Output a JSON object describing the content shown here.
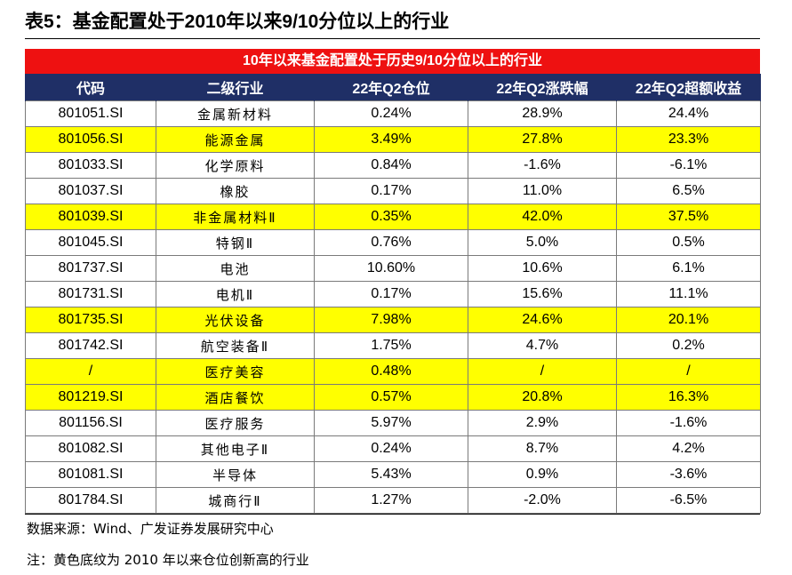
{
  "title": "表5：基金配置处于2010年以来9/10分位以上的行业",
  "banner": "10年以来基金配置处于历史9/10分位以上的行业",
  "table": {
    "columns": [
      "代码",
      "二级行业",
      "22年Q2仓位",
      "22年Q2涨跌幅",
      "22年Q2超额收益"
    ],
    "highlight_color": "#ffff00",
    "rows": [
      {
        "highlight": false,
        "cells": [
          "801051.SI",
          "金属新材料",
          "0.24%",
          "28.9%",
          "24.4%"
        ]
      },
      {
        "highlight": true,
        "cells": [
          "801056.SI",
          "能源金属",
          "3.49%",
          "27.8%",
          "23.3%"
        ]
      },
      {
        "highlight": false,
        "cells": [
          "801033.SI",
          "化学原料",
          "0.84%",
          "-1.6%",
          "-6.1%"
        ]
      },
      {
        "highlight": false,
        "cells": [
          "801037.SI",
          "橡胶",
          "0.17%",
          "11.0%",
          "6.5%"
        ]
      },
      {
        "highlight": true,
        "cells": [
          "801039.SI",
          "非金属材料Ⅱ",
          "0.35%",
          "42.0%",
          "37.5%"
        ]
      },
      {
        "highlight": false,
        "cells": [
          "801045.SI",
          "特钢Ⅱ",
          "0.76%",
          "5.0%",
          "0.5%"
        ]
      },
      {
        "highlight": false,
        "cells": [
          "801737.SI",
          "电池",
          "10.60%",
          "10.6%",
          "6.1%"
        ]
      },
      {
        "highlight": false,
        "cells": [
          "801731.SI",
          "电机Ⅱ",
          "0.17%",
          "15.6%",
          "11.1%"
        ]
      },
      {
        "highlight": true,
        "cells": [
          "801735.SI",
          "光伏设备",
          "7.98%",
          "24.6%",
          "20.1%"
        ]
      },
      {
        "highlight": false,
        "cells": [
          "801742.SI",
          "航空装备Ⅱ",
          "1.75%",
          "4.7%",
          "0.2%"
        ]
      },
      {
        "highlight": true,
        "cells": [
          "/",
          "医疗美容",
          "0.48%",
          "/",
          "/"
        ]
      },
      {
        "highlight": true,
        "cells": [
          "801219.SI",
          "酒店餐饮",
          "0.57%",
          "20.8%",
          "16.3%"
        ]
      },
      {
        "highlight": false,
        "cells": [
          "801156.SI",
          "医疗服务",
          "5.97%",
          "2.9%",
          "-1.6%"
        ]
      },
      {
        "highlight": false,
        "cells": [
          "801082.SI",
          "其他电子Ⅱ",
          "0.24%",
          "8.7%",
          "4.2%"
        ]
      },
      {
        "highlight": false,
        "cells": [
          "801081.SI",
          "半导体",
          "5.43%",
          "0.9%",
          "-3.6%"
        ]
      },
      {
        "highlight": false,
        "cells": [
          "801784.SI",
          "城商行Ⅱ",
          "1.27%",
          "-2.0%",
          "-6.5%"
        ]
      }
    ]
  },
  "source": "数据来源：Wind、广发证券发展研究中心",
  "note": "注：黄色底纹为 2010 年以来仓位创新高的行业"
}
